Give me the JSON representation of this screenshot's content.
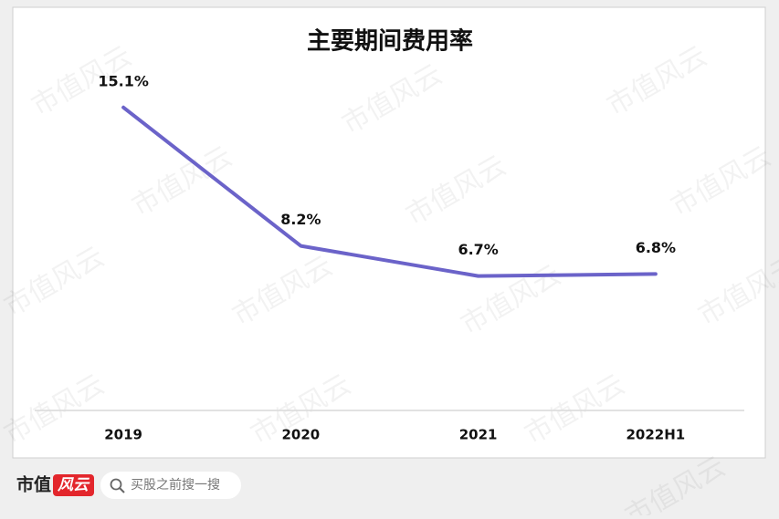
{
  "chart_data": {
    "type": "line",
    "title": "主要期间费用率",
    "categories": [
      "2019",
      "2020",
      "2021",
      "2022H1"
    ],
    "values": [
      15.1,
      8.2,
      6.7,
      6.8
    ],
    "value_labels": [
      "15.1%",
      "8.2%",
      "6.7%",
      "6.8%"
    ],
    "color": "#6b63c9",
    "ylim": [
      0,
      16
    ]
  },
  "watermark": "市值风云",
  "footer": {
    "brand_left": "市值",
    "brand_right": "风云",
    "search_placeholder": "买股之前搜一搜"
  }
}
